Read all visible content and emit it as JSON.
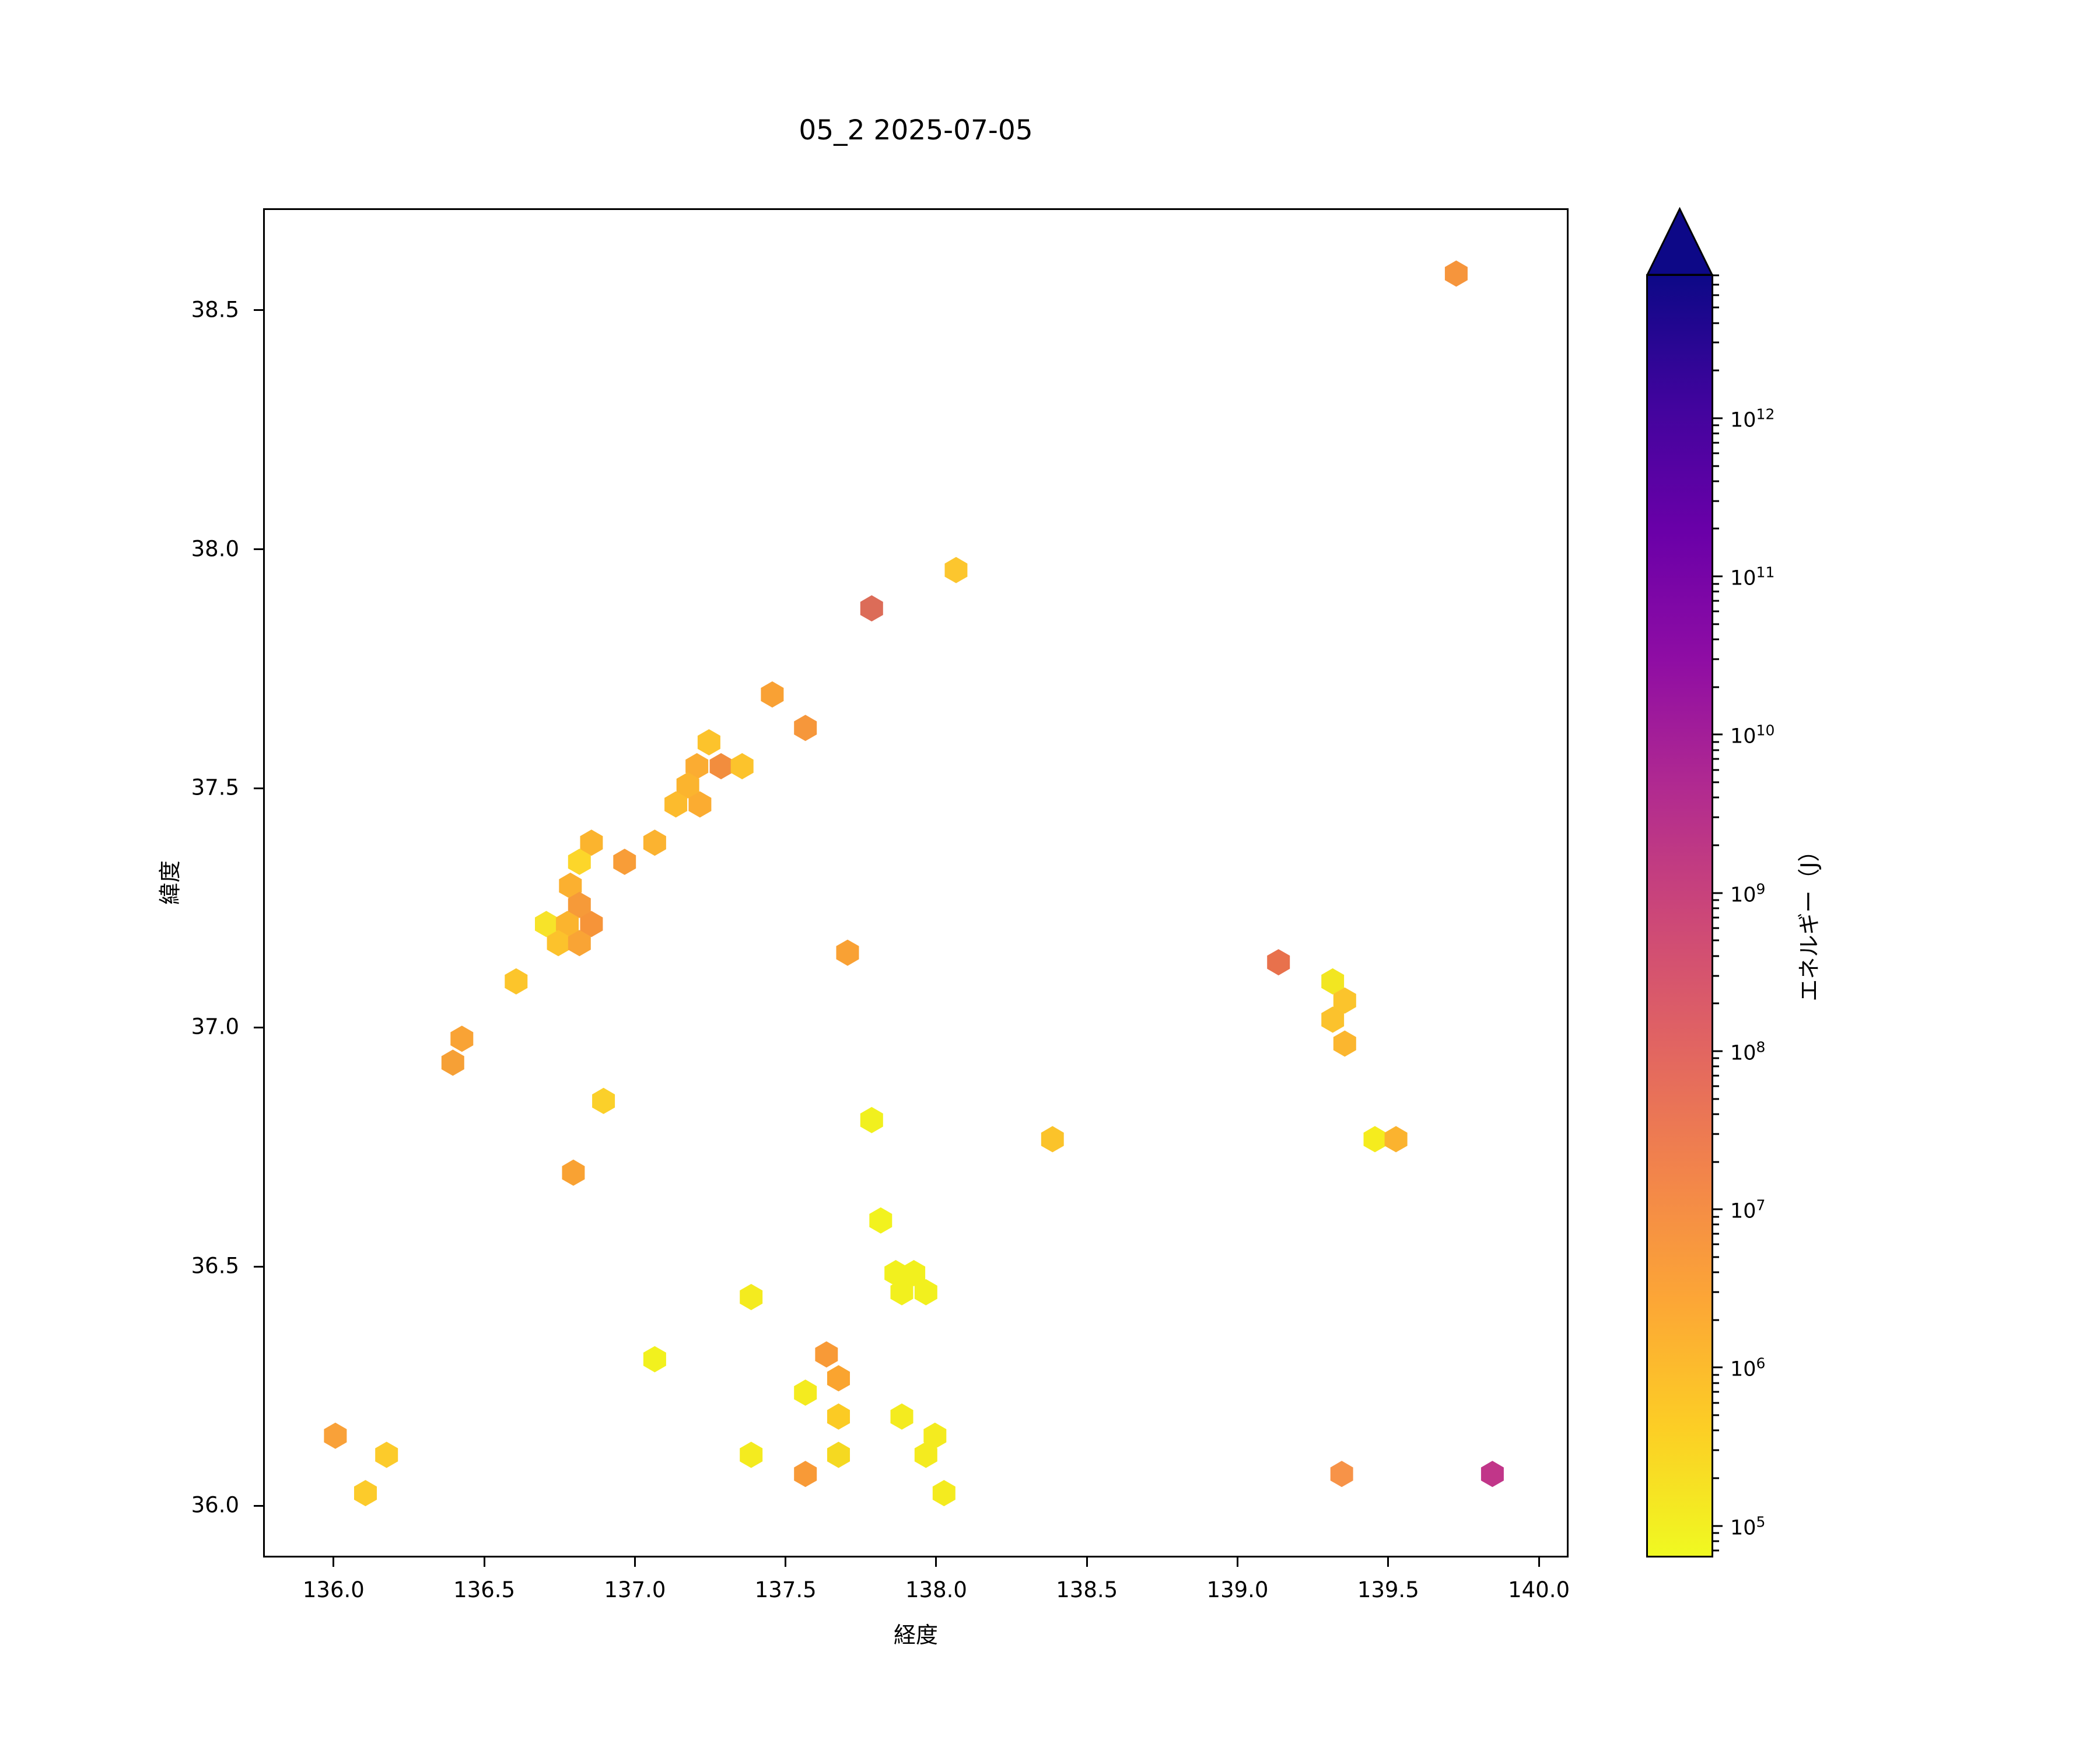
{
  "figure": {
    "title": "05_2 2025-07-05"
  },
  "chart_data": {
    "type": "scatter",
    "subtype": "hexbin",
    "title": "05_2 2025-07-05",
    "xlabel": "経度",
    "ylabel": "緯度",
    "xlim": [
      135.766,
      140.087
    ],
    "ylim": [
      35.899,
      38.713
    ],
    "xticks": [
      136.0,
      136.5,
      137.0,
      137.5,
      138.0,
      138.5,
      139.0,
      139.5,
      140.0
    ],
    "yticks": [
      36.0,
      36.5,
      37.0,
      37.5,
      38.0,
      38.5
    ],
    "grid": false,
    "legend_position": "none",
    "points_lon_lat_color": [
      [
        139.72,
        38.58,
        "#F6953C"
      ],
      [
        138.06,
        37.96,
        "#FCC62E"
      ],
      [
        137.78,
        37.88,
        "#DC6C58"
      ],
      [
        137.45,
        37.7,
        "#F9A134"
      ],
      [
        137.56,
        37.63,
        "#F6973B"
      ],
      [
        137.24,
        37.6,
        "#FCC32C"
      ],
      [
        137.2,
        37.55,
        "#FBAC32"
      ],
      [
        137.28,
        37.55,
        "#F28D3E"
      ],
      [
        137.35,
        37.55,
        "#FCC32C"
      ],
      [
        137.17,
        37.51,
        "#FBB42E"
      ],
      [
        137.13,
        37.47,
        "#FCBB2D"
      ],
      [
        137.21,
        37.47,
        "#FBAC31"
      ],
      [
        137.06,
        37.39,
        "#FBB330"
      ],
      [
        136.85,
        37.39,
        "#FBB42E"
      ],
      [
        136.81,
        37.35,
        "#FCD62A"
      ],
      [
        136.96,
        37.35,
        "#F89D38"
      ],
      [
        136.78,
        37.3,
        "#FBB030"
      ],
      [
        136.81,
        37.26,
        "#F69A39"
      ],
      [
        136.7,
        37.22,
        "#F7E329"
      ],
      [
        136.77,
        37.22,
        "#FBB42E"
      ],
      [
        136.85,
        37.22,
        "#F69439"
      ],
      [
        136.74,
        37.18,
        "#FCC22C"
      ],
      [
        136.81,
        37.18,
        "#F9A435"
      ],
      [
        137.7,
        37.16,
        "#F9A134"
      ],
      [
        136.6,
        37.1,
        "#FCC52B"
      ],
      [
        136.42,
        36.98,
        "#F9A335"
      ],
      [
        136.39,
        36.93,
        "#F6A036"
      ],
      [
        136.89,
        36.85,
        "#FBD02A"
      ],
      [
        137.78,
        36.81,
        "#F1F01E"
      ],
      [
        138.38,
        36.77,
        "#FBC32A"
      ],
      [
        136.79,
        36.7,
        "#F9A233"
      ],
      [
        137.81,
        36.6,
        "#F2F21E"
      ],
      [
        139.13,
        37.14,
        "#E8714C"
      ],
      [
        139.31,
        37.1,
        "#F2E621"
      ],
      [
        139.35,
        37.06,
        "#FBC42C"
      ],
      [
        139.31,
        37.02,
        "#FBC22D"
      ],
      [
        139.35,
        36.97,
        "#FBB62F"
      ],
      [
        139.45,
        36.77,
        "#F5EC1E"
      ],
      [
        139.52,
        36.77,
        "#FBB32F"
      ],
      [
        137.38,
        36.44,
        "#F4EB1F"
      ],
      [
        137.86,
        36.49,
        "#F2F01E"
      ],
      [
        137.92,
        36.49,
        "#F2F01E"
      ],
      [
        137.88,
        36.45,
        "#F2F01E"
      ],
      [
        137.96,
        36.45,
        "#F2F01E"
      ],
      [
        137.63,
        36.32,
        "#F89A37"
      ],
      [
        137.67,
        36.27,
        "#FAA42F"
      ],
      [
        137.56,
        36.24,
        "#F4EB1F"
      ],
      [
        137.67,
        36.19,
        "#FBCB24"
      ],
      [
        137.88,
        36.19,
        "#F4EB1F"
      ],
      [
        137.99,
        36.15,
        "#F4EB1F"
      ],
      [
        137.96,
        36.11,
        "#F4EB1F"
      ],
      [
        137.38,
        36.11,
        "#F4EB1F"
      ],
      [
        137.67,
        36.11,
        "#F5D921"
      ],
      [
        137.56,
        36.07,
        "#F89A37"
      ],
      [
        138.02,
        36.03,
        "#F4EB1F"
      ],
      [
        136.0,
        36.15,
        "#F9A139"
      ],
      [
        136.17,
        36.11,
        "#FCCB2B"
      ],
      [
        136.1,
        36.03,
        "#FCCB2B"
      ],
      [
        137.06,
        36.31,
        "#F2F11E"
      ],
      [
        139.34,
        36.07,
        "#F79348"
      ],
      [
        139.84,
        36.07,
        "#C13689"
      ]
    ],
    "colorbar": {
      "label": "エネルギー（J）",
      "scale": "log",
      "unit": "J",
      "tick_exponents": [
        5,
        6,
        7,
        8,
        9,
        10,
        11,
        12
      ],
      "min_exponent": 4.8,
      "max_exponent": 12.91,
      "extend": "max",
      "colormap": "plasma_r",
      "stops_bottom_to_top": [
        "#f0f921",
        "#fcce25",
        "#fca636",
        "#f2844b",
        "#e16462",
        "#cc4778",
        "#b12a90",
        "#8f0da4",
        "#6a00a8",
        "#41049d",
        "#0d0887"
      ]
    }
  }
}
